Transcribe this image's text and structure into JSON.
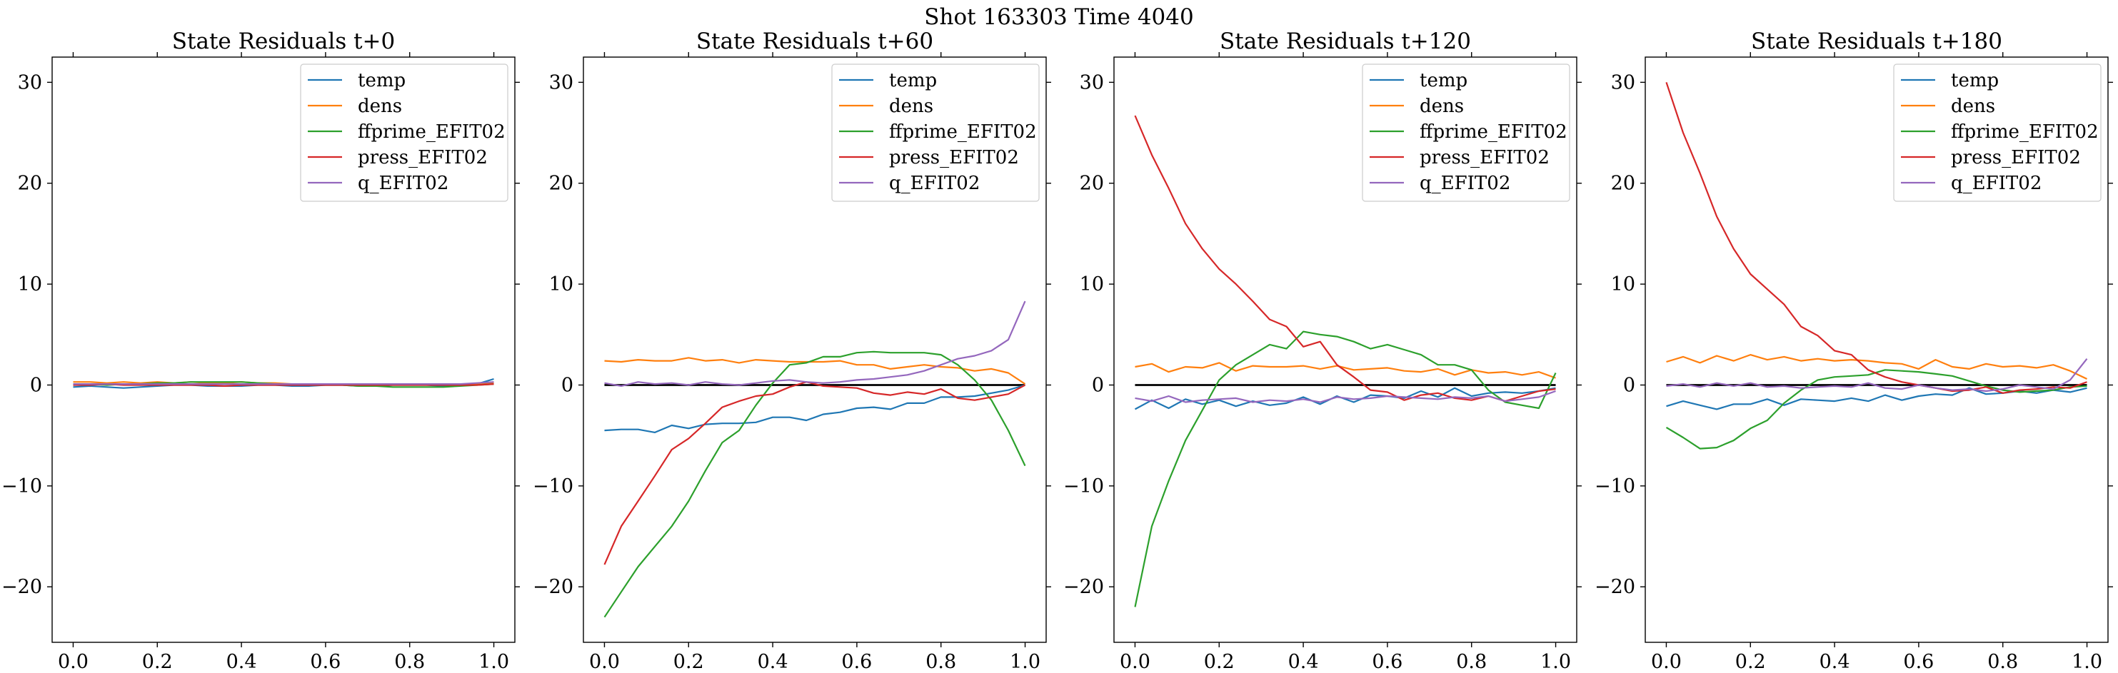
{
  "figure": {
    "suptitle": "Shot 163303   Time 4040"
  },
  "chart_data": [
    {
      "type": "line",
      "title": "State Residuals t+0",
      "xlim": [
        -0.05,
        1.05
      ],
      "ylim": [
        -25.5,
        32.5
      ],
      "xticks": [
        "0.0",
        "0.2",
        "0.4",
        "0.6",
        "0.8",
        "1.0"
      ],
      "yticks": [
        "−20",
        "−10",
        "0",
        "10",
        "20",
        "30"
      ],
      "grid": false,
      "legend_position": "top-right",
      "zero_line": false,
      "x": [
        0.0,
        0.04,
        0.08,
        0.12,
        0.16,
        0.2,
        0.24,
        0.28,
        0.32,
        0.36,
        0.4,
        0.44,
        0.48,
        0.52,
        0.56,
        0.6,
        0.64,
        0.68,
        0.72,
        0.76,
        0.8,
        0.84,
        0.88,
        0.92,
        0.96,
        1.0
      ],
      "series": [
        {
          "name": "temp",
          "color": "#1f77b4",
          "values": [
            -0.2,
            -0.1,
            -0.2,
            -0.3,
            -0.2,
            -0.1,
            0.0,
            0.0,
            -0.1,
            -0.1,
            -0.1,
            0.0,
            0.0,
            -0.1,
            -0.1,
            0.0,
            0.0,
            -0.1,
            -0.1,
            0.0,
            0.0,
            0.0,
            -0.1,
            0.0,
            0.1,
            0.6
          ]
        },
        {
          "name": "dens",
          "color": "#ff7f0e",
          "values": [
            0.3,
            0.3,
            0.2,
            0.3,
            0.2,
            0.3,
            0.2,
            0.3,
            0.2,
            0.2,
            0.3,
            0.2,
            0.2,
            0.1,
            0.1,
            0.1,
            0.1,
            0.1,
            0.0,
            0.1,
            0.1,
            0.1,
            0.1,
            0.1,
            0.1,
            0.2
          ]
        },
        {
          "name": "ffprime_EFIT02",
          "color": "#2ca02c",
          "values": [
            0.0,
            0.1,
            0.0,
            0.1,
            0.1,
            0.2,
            0.2,
            0.3,
            0.3,
            0.3,
            0.3,
            0.2,
            0.1,
            0.1,
            0.0,
            0.0,
            0.0,
            -0.1,
            -0.1,
            -0.2,
            -0.2,
            -0.2,
            -0.2,
            -0.1,
            0.0,
            0.1
          ]
        },
        {
          "name": "press_EFIT02",
          "color": "#d62728",
          "values": [
            0.0,
            0.0,
            0.1,
            0.0,
            0.0,
            0.0,
            0.0,
            0.0,
            0.0,
            -0.1,
            0.0,
            0.0,
            0.0,
            0.0,
            0.0,
            0.0,
            0.0,
            0.0,
            0.0,
            0.0,
            0.0,
            0.0,
            0.0,
            0.0,
            0.0,
            0.1
          ]
        },
        {
          "name": "q_EFIT02",
          "color": "#9467bd",
          "values": [
            0.1,
            0.1,
            0.1,
            0.1,
            0.1,
            0.1,
            0.1,
            0.1,
            0.1,
            0.1,
            0.1,
            0.1,
            0.1,
            0.1,
            0.1,
            0.1,
            0.1,
            0.1,
            0.1,
            0.1,
            0.1,
            0.1,
            0.1,
            0.1,
            0.2,
            0.3
          ]
        }
      ]
    },
    {
      "type": "line",
      "title": "State Residuals t+60",
      "xlim": [
        -0.05,
        1.05
      ],
      "ylim": [
        -25.5,
        32.5
      ],
      "xticks": [
        "0.0",
        "0.2",
        "0.4",
        "0.6",
        "0.8",
        "1.0"
      ],
      "yticks": [
        "−20",
        "−10",
        "0",
        "10",
        "20",
        "30"
      ],
      "grid": false,
      "legend_position": "top-right",
      "zero_line": true,
      "x": [
        0.0,
        0.04,
        0.08,
        0.12,
        0.16,
        0.2,
        0.24,
        0.28,
        0.32,
        0.36,
        0.4,
        0.44,
        0.48,
        0.52,
        0.56,
        0.6,
        0.64,
        0.68,
        0.72,
        0.76,
        0.8,
        0.84,
        0.88,
        0.92,
        0.96,
        1.0
      ],
      "series": [
        {
          "name": "temp",
          "color": "#1f77b4",
          "values": [
            -4.5,
            -4.4,
            -4.4,
            -4.7,
            -4.0,
            -4.3,
            -3.9,
            -3.8,
            -3.8,
            -3.7,
            -3.2,
            -3.2,
            -3.5,
            -2.9,
            -2.7,
            -2.3,
            -2.2,
            -2.4,
            -1.8,
            -1.8,
            -1.2,
            -1.2,
            -1.1,
            -0.8,
            -0.5,
            0.0
          ]
        },
        {
          "name": "dens",
          "color": "#ff7f0e",
          "values": [
            2.4,
            2.3,
            2.5,
            2.4,
            2.4,
            2.7,
            2.4,
            2.5,
            2.2,
            2.5,
            2.4,
            2.3,
            2.3,
            2.3,
            2.4,
            2.0,
            2.0,
            1.6,
            1.8,
            2.0,
            1.8,
            1.7,
            1.4,
            1.6,
            1.2,
            0.1
          ]
        },
        {
          "name": "ffprime_EFIT02",
          "color": "#2ca02c",
          "values": [
            -23.0,
            -20.5,
            -18.0,
            -16.0,
            -14.0,
            -11.5,
            -8.5,
            -5.7,
            -4.5,
            -2.0,
            0.2,
            2.0,
            2.2,
            2.8,
            2.8,
            3.2,
            3.3,
            3.2,
            3.2,
            3.2,
            3.0,
            2.0,
            0.5,
            -1.5,
            -4.5,
            -8.0
          ]
        },
        {
          "name": "press_EFIT02",
          "color": "#d62728",
          "values": [
            -17.8,
            -14.0,
            -11.5,
            -9.0,
            -6.4,
            -5.3,
            -3.8,
            -2.2,
            -1.6,
            -1.1,
            -0.9,
            -0.2,
            0.3,
            -0.1,
            -0.2,
            -0.3,
            -0.8,
            -1.0,
            -0.7,
            -0.9,
            -0.4,
            -1.3,
            -1.5,
            -1.2,
            -0.9,
            0.0
          ]
        },
        {
          "name": "q_EFIT02",
          "color": "#9467bd",
          "values": [
            0.2,
            -0.1,
            0.3,
            0.1,
            0.2,
            0.0,
            0.3,
            0.1,
            0.0,
            0.2,
            0.4,
            0.5,
            0.3,
            0.2,
            0.3,
            0.5,
            0.6,
            0.8,
            1.0,
            1.4,
            2.0,
            2.6,
            2.9,
            3.4,
            4.5,
            8.3
          ]
        }
      ]
    },
    {
      "type": "line",
      "title": "State Residuals t+120",
      "xlim": [
        -0.05,
        1.05
      ],
      "ylim": [
        -25.5,
        32.5
      ],
      "xticks": [
        "0.0",
        "0.2",
        "0.4",
        "0.6",
        "0.8",
        "1.0"
      ],
      "yticks": [
        "−20",
        "−10",
        "0",
        "10",
        "20",
        "30"
      ],
      "grid": false,
      "legend_position": "top-right",
      "zero_line": true,
      "x": [
        0.0,
        0.04,
        0.08,
        0.12,
        0.16,
        0.2,
        0.24,
        0.28,
        0.32,
        0.36,
        0.4,
        0.44,
        0.48,
        0.52,
        0.56,
        0.6,
        0.64,
        0.68,
        0.72,
        0.76,
        0.8,
        0.84,
        0.88,
        0.92,
        0.96,
        1.0
      ],
      "series": [
        {
          "name": "temp",
          "color": "#1f77b4",
          "values": [
            -2.4,
            -1.5,
            -2.3,
            -1.4,
            -1.9,
            -1.5,
            -2.1,
            -1.6,
            -2.0,
            -1.8,
            -1.2,
            -1.9,
            -1.1,
            -1.7,
            -1.0,
            -1.1,
            -1.3,
            -0.6,
            -1.2,
            -0.3,
            -1.1,
            -0.8,
            -0.7,
            -0.8,
            -0.6,
            -0.3
          ]
        },
        {
          "name": "dens",
          "color": "#ff7f0e",
          "values": [
            1.8,
            2.1,
            1.3,
            1.8,
            1.7,
            2.2,
            1.4,
            1.9,
            1.8,
            1.8,
            1.9,
            1.6,
            1.9,
            1.5,
            1.6,
            1.7,
            1.4,
            1.3,
            1.6,
            1.0,
            1.5,
            1.2,
            1.3,
            1.0,
            1.3,
            0.7
          ]
        },
        {
          "name": "ffprime_EFIT02",
          "color": "#2ca02c",
          "values": [
            -22.0,
            -14.0,
            -9.5,
            -5.5,
            -2.5,
            0.5,
            2.0,
            3.0,
            4.0,
            3.6,
            5.3,
            5.0,
            4.8,
            4.3,
            3.6,
            4.0,
            3.5,
            3.0,
            2.0,
            2.0,
            1.5,
            -0.5,
            -1.7,
            -2.0,
            -2.3,
            1.2
          ]
        },
        {
          "name": "press_EFIT02",
          "color": "#d62728",
          "values": [
            26.7,
            22.8,
            19.5,
            16.0,
            13.5,
            11.5,
            10.0,
            8.3,
            6.5,
            5.8,
            3.8,
            4.3,
            2.0,
            0.8,
            -0.5,
            -0.7,
            -1.5,
            -1.0,
            -0.8,
            -1.3,
            -1.5,
            -1.1,
            -1.6,
            -1.1,
            -0.6,
            -0.4
          ]
        },
        {
          "name": "q_EFIT02",
          "color": "#9467bd",
          "values": [
            -1.3,
            -1.6,
            -1.1,
            -1.7,
            -1.5,
            -1.4,
            -1.3,
            -1.7,
            -1.5,
            -1.6,
            -1.4,
            -1.7,
            -1.2,
            -1.4,
            -1.3,
            -1.1,
            -1.2,
            -1.3,
            -1.4,
            -1.2,
            -1.3,
            -1.1,
            -1.6,
            -1.4,
            -1.2,
            -0.6
          ]
        }
      ]
    },
    {
      "type": "line",
      "title": "State Residuals t+180",
      "xlim": [
        -0.05,
        1.05
      ],
      "ylim": [
        -25.5,
        32.5
      ],
      "xticks": [
        "0.0",
        "0.2",
        "0.4",
        "0.6",
        "0.8",
        "1.0"
      ],
      "yticks": [
        "−20",
        "−10",
        "0",
        "10",
        "20",
        "30"
      ],
      "grid": false,
      "legend_position": "top-right",
      "zero_line": true,
      "x": [
        0.0,
        0.04,
        0.08,
        0.12,
        0.16,
        0.2,
        0.24,
        0.28,
        0.32,
        0.36,
        0.4,
        0.44,
        0.48,
        0.52,
        0.56,
        0.6,
        0.64,
        0.68,
        0.72,
        0.76,
        0.8,
        0.84,
        0.88,
        0.92,
        0.96,
        1.0
      ],
      "series": [
        {
          "name": "temp",
          "color": "#1f77b4",
          "values": [
            -2.1,
            -1.6,
            -2.0,
            -2.4,
            -1.9,
            -1.9,
            -1.4,
            -2.0,
            -1.4,
            -1.5,
            -1.6,
            -1.3,
            -1.6,
            -1.0,
            -1.5,
            -1.1,
            -0.9,
            -1.0,
            -0.3,
            -0.9,
            -0.8,
            -0.6,
            -0.8,
            -0.5,
            -0.7,
            -0.3
          ]
        },
        {
          "name": "dens",
          "color": "#ff7f0e",
          "values": [
            2.3,
            2.8,
            2.2,
            2.9,
            2.4,
            3.0,
            2.5,
            2.8,
            2.4,
            2.6,
            2.4,
            2.5,
            2.4,
            2.2,
            2.1,
            1.6,
            2.5,
            1.8,
            1.6,
            2.1,
            1.8,
            1.9,
            1.7,
            2.0,
            1.4,
            0.6
          ]
        },
        {
          "name": "ffprime_EFIT02",
          "color": "#2ca02c",
          "values": [
            -4.2,
            -5.2,
            -6.3,
            -6.2,
            -5.5,
            -4.3,
            -3.5,
            -1.8,
            -0.5,
            0.5,
            0.8,
            0.9,
            1.0,
            1.5,
            1.4,
            1.3,
            1.1,
            0.9,
            0.4,
            -0.1,
            -0.5,
            -0.7,
            -0.6,
            -0.5,
            -0.2,
            -0.1
          ]
        },
        {
          "name": "press_EFIT02",
          "color": "#d62728",
          "values": [
            30.0,
            25.0,
            21.0,
            16.7,
            13.5,
            11.0,
            9.5,
            8.0,
            5.8,
            4.9,
            3.4,
            3.0,
            1.5,
            0.8,
            0.3,
            0.0,
            -0.3,
            -0.6,
            -0.5,
            -0.2,
            -0.8,
            -0.5,
            -0.4,
            -0.2,
            -0.3,
            0.3
          ]
        },
        {
          "name": "q_EFIT02",
          "color": "#9467bd",
          "values": [
            -0.1,
            0.1,
            -0.2,
            0.2,
            -0.1,
            0.2,
            -0.2,
            -0.1,
            -0.3,
            -0.2,
            -0.1,
            -0.2,
            0.2,
            -0.3,
            -0.4,
            0.0,
            -0.3,
            -0.5,
            -0.4,
            -0.6,
            -0.4,
            0.0,
            -0.2,
            -0.4,
            0.5,
            2.6
          ]
        }
      ]
    }
  ]
}
